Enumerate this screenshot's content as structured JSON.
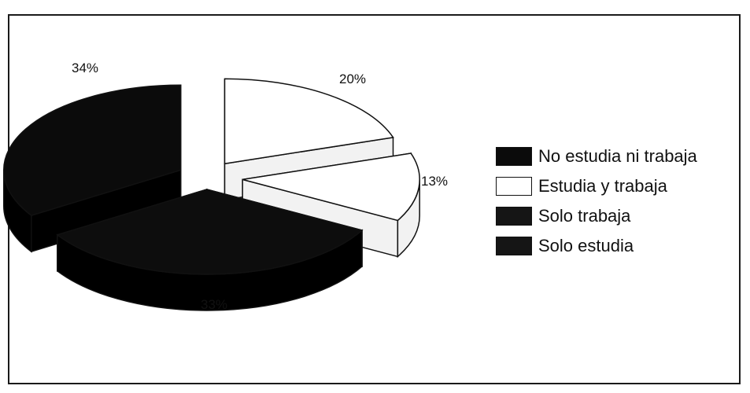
{
  "chart_data": {
    "type": "pie",
    "style": "3d-exploded",
    "title": "",
    "legend_position": "right",
    "slices": [
      {
        "label": "No estudia ni trabaja",
        "value": 34,
        "display": "34%",
        "fill": "#0b0b0b",
        "side": "#000000"
      },
      {
        "label": "Estudia y trabaja",
        "value": 20,
        "display": "20%",
        "fill": "#ffffff",
        "side": "#f2f2f2"
      },
      {
        "label": "Solo trabaja",
        "value": 13,
        "display": "13%",
        "fill": "#ffffff",
        "side": "#f2f2f2"
      },
      {
        "label": "Solo estudia",
        "value": 33,
        "display": "33%",
        "fill": "#0d0d0d",
        "side": "#000000"
      }
    ],
    "legend": [
      {
        "label": "No estudia ni trabaja",
        "fill": "#0b0b0b"
      },
      {
        "label": "Estudia y trabaja",
        "fill": "#ffffff"
      },
      {
        "label": "Solo trabaja",
        "fill": "#151515"
      },
      {
        "label": "Solo estudia",
        "fill": "#151515"
      }
    ]
  }
}
